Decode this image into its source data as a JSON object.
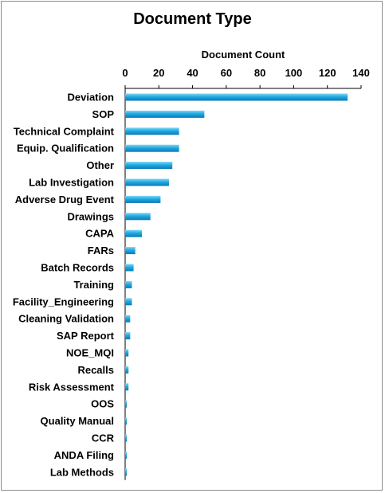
{
  "chart_data": {
    "type": "bar",
    "orientation": "horizontal",
    "title": "Document Type",
    "xlabel": "Document Count",
    "ylabel": "",
    "xlim": [
      0,
      140
    ],
    "xticks": [
      0,
      20,
      40,
      60,
      80,
      100,
      120,
      140
    ],
    "x_axis_position": "top",
    "grid": false,
    "legend": "none",
    "bar_color": "#1fa9e0",
    "categories": [
      "Deviation",
      "SOP",
      "Technical Complaint",
      "Equip. Qualification",
      "Other",
      "Lab Investigation",
      "Adverse Drug Event",
      "Drawings",
      "CAPA",
      "FARs",
      "Batch Records",
      "Training",
      "Facility_Engineering",
      "Cleaning Validation",
      "SAP Report",
      "NOE_MQI",
      "Recalls",
      "Risk Assessment",
      "OOS",
      "Quality Manual",
      "CCR",
      "ANDA Filing",
      "Lab Methods"
    ],
    "values": [
      132,
      47,
      32,
      32,
      28,
      26,
      21,
      15,
      10,
      6,
      5,
      4,
      4,
      3,
      3,
      2,
      2,
      2,
      1,
      1,
      1,
      1,
      1
    ]
  }
}
